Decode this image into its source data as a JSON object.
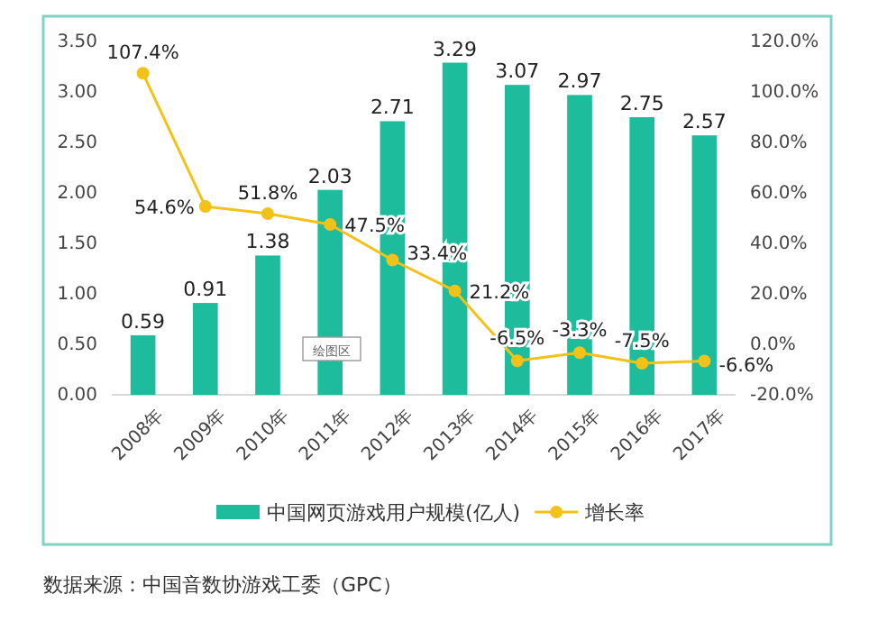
{
  "chart_data": {
    "type": "bar",
    "categories": [
      "2008年",
      "2009年",
      "2010年",
      "2011年",
      "2012年",
      "2013年",
      "2014年",
      "2015年",
      "2016年",
      "2017年"
    ],
    "series": [
      {
        "name": "中国网页游戏用户规模(亿人)",
        "color": "#1dbc9c",
        "values": [
          0.59,
          0.91,
          1.38,
          2.03,
          2.71,
          3.29,
          3.07,
          2.97,
          2.75,
          2.57
        ],
        "value_labels": [
          "0.59",
          "0.91",
          "1.38",
          "2.03",
          "2.71",
          "3.29",
          "3.07",
          "2.97",
          "2.75",
          "2.57"
        ]
      },
      {
        "name": "增长率",
        "type": "line",
        "axis": "y2",
        "color": "#f2c218",
        "marker": "circle",
        "values": [
          107.4,
          54.6,
          51.8,
          47.5,
          33.4,
          21.2,
          -6.5,
          -3.3,
          -7.5,
          -6.6
        ],
        "value_labels": [
          "107.4%",
          "54.6%",
          "51.8%",
          "47.5%",
          "33.4%",
          "21.2%",
          "-6.5%",
          "-3.3%",
          "-7.5%",
          "-6.6%"
        ]
      }
    ],
    "ylim": [
      0,
      3.5
    ],
    "yticks": [
      {
        "value": 0,
        "label": "0.00"
      },
      {
        "value": 0.5,
        "label": "0.50"
      },
      {
        "value": 1,
        "label": "1.00"
      },
      {
        "value": 1.5,
        "label": "1.50"
      },
      {
        "value": 2,
        "label": "2.00"
      },
      {
        "value": 2.5,
        "label": "2.50"
      },
      {
        "value": 3,
        "label": "3.00"
      },
      {
        "value": 3.5,
        "label": "3.50"
      }
    ],
    "y2lim": [
      -20,
      120
    ],
    "y2ticks": [
      {
        "value": -20,
        "label": "-20.0%"
      },
      {
        "value": 0,
        "label": "0.0%"
      },
      {
        "value": 20,
        "label": "20.0%"
      },
      {
        "value": 40,
        "label": "40.0%"
      },
      {
        "value": 60,
        "label": "60.0%"
      },
      {
        "value": 80,
        "label": "80.0%"
      },
      {
        "value": 100,
        "label": "100.0%"
      },
      {
        "value": 120,
        "label": "120.0%"
      }
    ],
    "legend": "bottom",
    "grid": false,
    "annotations": [
      "绘图区",
      "数据来源：中国音数协游戏工委（GPC）"
    ]
  }
}
